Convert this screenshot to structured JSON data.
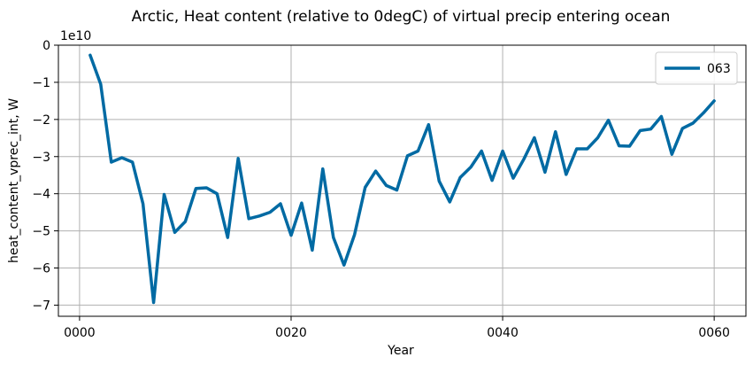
{
  "chart_data": {
    "type": "line",
    "title": "Arctic, Heat content (relative to 0degC) of virtual precip entering ocean",
    "xlabel": "Year",
    "ylabel": "heat_content_vprec_int, W",
    "y_offset_text": "1e10",
    "xlim": [
      -2,
      63
    ],
    "ylim": [
      -7.3,
      0
    ],
    "x_ticks": [
      0,
      20,
      40,
      60
    ],
    "x_tick_labels": [
      "0000",
      "0020",
      "0040",
      "0060"
    ],
    "y_ticks": [
      0,
      -1,
      -2,
      -3,
      -4,
      -5,
      -6,
      -7
    ],
    "y_tick_labels": [
      "0",
      "−1",
      "−2",
      "−3",
      "−4",
      "−5",
      "−6",
      "−7"
    ],
    "grid": true,
    "legend_position": "top-right",
    "series": [
      {
        "name": "063",
        "color": "#006aa3",
        "x": [
          1,
          2,
          3,
          4,
          5,
          6,
          7,
          8,
          9,
          10,
          11,
          12,
          13,
          14,
          15,
          16,
          17,
          18,
          19,
          20,
          21,
          22,
          23,
          24,
          25,
          26,
          27,
          28,
          29,
          30,
          31,
          32,
          33,
          34,
          35,
          36,
          37,
          38,
          39,
          40,
          41,
          42,
          43,
          44,
          45,
          46,
          47,
          48,
          49,
          50,
          51,
          52,
          53,
          54,
          55,
          56,
          57,
          58,
          59,
          60
        ],
        "values": [
          -0.27,
          -1.05,
          -3.15,
          -3.03,
          -3.15,
          -4.27,
          -6.93,
          -4.02,
          -5.04,
          -4.75,
          -3.86,
          -3.84,
          -4.0,
          -5.18,
          -3.05,
          -4.67,
          -4.6,
          -4.5,
          -4.27,
          -5.12,
          -4.25,
          -5.52,
          -3.33,
          -5.18,
          -5.92,
          -5.1,
          -3.83,
          -3.39,
          -3.78,
          -3.9,
          -2.98,
          -2.85,
          -2.14,
          -3.66,
          -4.22,
          -3.56,
          -3.28,
          -2.85,
          -3.64,
          -2.85,
          -3.58,
          -3.07,
          -2.49,
          -3.42,
          -2.33,
          -3.48,
          -2.79,
          -2.79,
          -2.49,
          -2.02,
          -2.71,
          -2.72,
          -2.3,
          -2.26,
          -1.92,
          -2.94,
          -2.24,
          -2.1,
          -1.82,
          -1.5
        ]
      }
    ]
  }
}
